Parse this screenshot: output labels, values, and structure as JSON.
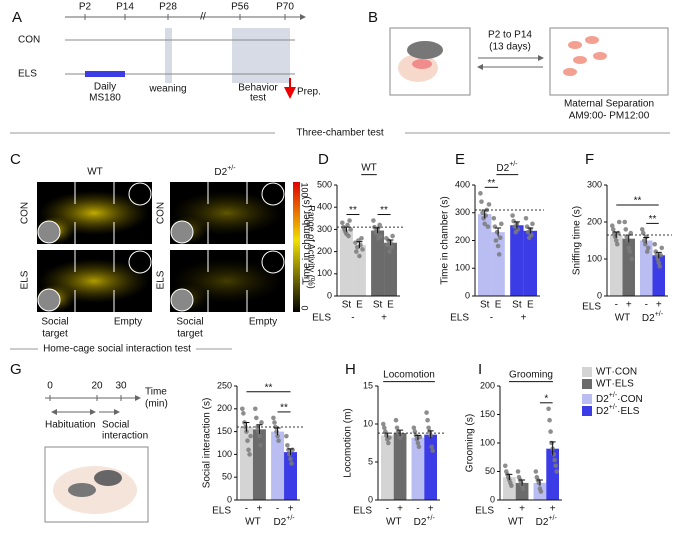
{
  "panel_labels": {
    "a": "A",
    "b": "B",
    "c": "C"
  },
  "panel_a": {
    "ticks": [
      "P2",
      "P14",
      "P28",
      "P56",
      "P70"
    ],
    "rows": [
      "CON",
      "ELS"
    ],
    "daily": "Daily",
    "ms": "MS180",
    "weaning": "weaning",
    "behavior": "Behavior",
    "test": "test",
    "prep": "Prep."
  },
  "panel_b": {
    "arrow_top": "P2 to P14",
    "arrow_days": "(13 days)",
    "caption1": "Maternal Separation",
    "caption2": "AM9:00- PM12:00"
  },
  "section1": "Three-chamber test",
  "panel_c": {
    "columns": [
      "WT",
      {
        "base": "D2",
        "sup": "+/-"
      }
    ],
    "rows": [
      "CON",
      "ELS"
    ],
    "colorbar_max": "100",
    "colorbar_min": "0",
    "colorbar_label": "Range of Activity (%)",
    "social": [
      "Social",
      "target"
    ],
    "empty": "Empty"
  },
  "section2": "Home-cage social interaction test",
  "panel_g": {
    "ticks": [
      "0",
      "20",
      "30"
    ],
    "time": "Time",
    "unit": "(min)",
    "habituation": "Habituation",
    "social": [
      "Social",
      "interaction"
    ]
  },
  "legend": [
    {
      "name": "WT·CON",
      "color": "#d4d4d4"
    },
    {
      "name": "WT·ELS",
      "color": "#6b6b6b"
    },
    {
      "name": {
        "base": "D2",
        "sup": "+/-",
        "rest": "·CON"
      },
      "color": "#b9bdf2"
    },
    {
      "name": {
        "base": "D2",
        "sup": "+/-",
        "rest": "·ELS"
      },
      "color": "#3c3ce6"
    }
  ],
  "chart_data": [
    {
      "type": "bar",
      "label": "D",
      "title": "WT",
      "ylabel": "Time in chamber (s)",
      "ylim": [
        0,
        500
      ],
      "yticks": [
        0,
        100,
        200,
        300,
        400,
        500
      ],
      "reference": 310,
      "categories": [
        "St",
        "E",
        "St",
        "E"
      ],
      "groups": [
        "-",
        "+"
      ],
      "group_row_label": "ELS",
      "colors": [
        "#d4d4d4",
        "#d4d4d4",
        "#6b6b6b",
        "#6b6b6b"
      ],
      "values": [
        300,
        230,
        295,
        240
      ],
      "errors": [
        10,
        15,
        12,
        12
      ],
      "points": [
        [
          330,
          310,
          300,
          290,
          280,
          320,
          270,
          340,
          300
        ],
        [
          240,
          200,
          220,
          250,
          180,
          230,
          260,
          210
        ],
        [
          340,
          310,
          290,
          280,
          300,
          260,
          320,
          270
        ],
        [
          260,
          230,
          250,
          200,
          240,
          220,
          270
        ]
      ],
      "significance": [
        "**",
        "**"
      ]
    },
    {
      "type": "bar",
      "label": "E",
      "title": {
        "base": "D2",
        "sup": "+/-"
      },
      "ylabel": "Time in chamber (s)",
      "ylim": [
        0,
        400
      ],
      "yticks": [
        0,
        100,
        200,
        300,
        400
      ],
      "reference": 310,
      "categories": [
        "St",
        "E",
        "St",
        "E"
      ],
      "groups": [
        "-",
        "+"
      ],
      "group_row_label": "ELS",
      "colors": [
        "#b9bdf2",
        "#b9bdf2",
        "#3c3ce6",
        "#3c3ce6"
      ],
      "values": [
        295,
        230,
        255,
        235
      ],
      "errors": [
        15,
        15,
        12,
        10
      ],
      "points": [
        [
          370,
          340,
          300,
          280,
          260,
          290,
          310,
          250,
          330
        ],
        [
          280,
          250,
          200,
          230,
          180,
          150,
          210,
          260
        ],
        [
          290,
          270,
          250,
          230,
          260,
          240
        ],
        [
          280,
          250,
          230,
          210,
          240,
          220,
          260
        ]
      ],
      "significance": [
        "**"
      ]
    },
    {
      "type": "bar",
      "label": "F",
      "ylabel": "Sniffing time (s)",
      "ylim": [
        0,
        300
      ],
      "yticks": [
        0,
        100,
        200,
        300
      ],
      "reference": 165,
      "categories": [
        "-",
        "+",
        "-",
        "+"
      ],
      "category_row_label": "ELS",
      "groups": [
        "WT",
        {
          "base": "D2",
          "sup": "+/-"
        }
      ],
      "colors": [
        "#d4d4d4",
        "#6b6b6b",
        "#b9bdf2",
        "#3c3ce6"
      ],
      "values": [
        165,
        155,
        150,
        110
      ],
      "errors": [
        8,
        10,
        8,
        8
      ],
      "points": [
        [
          190,
          180,
          170,
          160,
          150,
          140,
          170,
          200
        ],
        [
          200,
          180,
          160,
          150,
          130,
          120,
          170,
          100
        ],
        [
          180,
          170,
          150,
          140,
          160,
          120,
          130
        ],
        [
          140,
          120,
          110,
          100,
          90,
          80,
          110,
          130
        ]
      ],
      "significance": [
        "**",
        "**"
      ]
    },
    {
      "type": "bar",
      "label": "G",
      "ylabel": "Social interaction (s)",
      "ylim": [
        0,
        250
      ],
      "yticks": [
        0,
        50,
        100,
        150,
        200,
        250
      ],
      "reference": 160,
      "categories": [
        "-",
        "+",
        "-",
        "+"
      ],
      "category_row_label": "ELS",
      "groups": [
        "WT",
        {
          "base": "D2",
          "sup": "+/-"
        }
      ],
      "colors": [
        "#d4d4d4",
        "#6b6b6b",
        "#b9bdf2",
        "#3c3ce6"
      ],
      "values": [
        160,
        155,
        150,
        105
      ],
      "errors": [
        10,
        10,
        8,
        7
      ],
      "points": [
        [
          200,
          190,
          170,
          160,
          150,
          130,
          110,
          100,
          140
        ],
        [
          200,
          180,
          160,
          150,
          140,
          120,
          170
        ],
        [
          180,
          170,
          160,
          150,
          140,
          130
        ],
        [
          140,
          120,
          110,
          100,
          90,
          80,
          110
        ]
      ],
      "significance": [
        "**",
        "**"
      ]
    },
    {
      "type": "bar",
      "label": "H",
      "title": "Locomotion",
      "ylabel": "Locomotion (m)",
      "ylim": [
        0,
        15
      ],
      "yticks": [
        0,
        5,
        10,
        15
      ],
      "reference": 8.8,
      "categories": [
        "-",
        "+",
        "-",
        "+"
      ],
      "category_row_label": "ELS",
      "groups": [
        "WT",
        {
          "base": "D2",
          "sup": "+/-"
        }
      ],
      "colors": [
        "#d4d4d4",
        "#6b6b6b",
        "#b9bdf2",
        "#3c3ce6"
      ],
      "values": [
        8.5,
        8.8,
        8.2,
        8.6
      ],
      "errors": [
        0.3,
        0.4,
        0.3,
        0.5
      ],
      "points": [
        [
          10,
          9.5,
          9,
          8.5,
          8,
          7.5,
          8.2
        ],
        [
          10.5,
          9.5,
          9,
          8.8,
          8.2,
          8.5
        ],
        [
          9.5,
          9,
          8.5,
          8,
          7.5,
          7,
          8.3
        ],
        [
          11.5,
          10.5,
          9.5,
          9,
          8.5,
          7,
          6.5
        ]
      ],
      "significance": []
    },
    {
      "type": "bar",
      "label": "I",
      "title": "Grooming",
      "ylabel": "Grooming (s)",
      "ylim": [
        0,
        200
      ],
      "yticks": [
        0,
        50,
        100,
        150,
        200
      ],
      "categories": [
        "-",
        "+",
        "-",
        "+"
      ],
      "category_row_label": "ELS",
      "groups": [
        "WT",
        {
          "base": "D2",
          "sup": "+/-"
        }
      ],
      "colors": [
        "#d4d4d4",
        "#6b6b6b",
        "#b9bdf2",
        "#3c3ce6"
      ],
      "values": [
        40,
        30,
        30,
        90
      ],
      "errors": [
        5,
        5,
        5,
        12
      ],
      "points": [
        [
          60,
          50,
          45,
          40,
          35,
          30,
          25
        ],
        [
          50,
          40,
          35,
          30,
          25,
          20
        ],
        [
          50,
          40,
          35,
          30,
          20,
          15
        ],
        [
          160,
          140,
          120,
          100,
          90,
          80,
          70,
          60,
          50
        ]
      ],
      "significance": [
        "*"
      ]
    }
  ]
}
